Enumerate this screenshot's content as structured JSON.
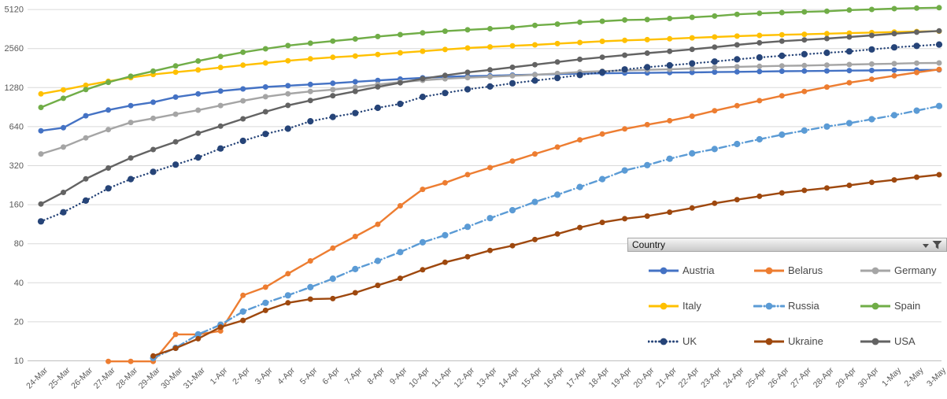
{
  "filter": {
    "label": "Country"
  },
  "chart_data": {
    "type": "line",
    "title": "",
    "xlabel": "",
    "ylabel": "",
    "y_scale": "log2",
    "ylim": [
      10,
      5120
    ],
    "grid": true,
    "legend_position": "bottom-right-overlay",
    "y_ticks": [
      5120,
      2560,
      1280,
      640,
      320,
      160,
      80,
      40,
      20,
      10
    ],
    "axis_text_color": "#595959",
    "grid_color": "#d9d9d9",
    "axis_line_color": "#bfbfbf",
    "x": [
      "24-Mar",
      "25-Mar",
      "26-Mar",
      "27-Mar",
      "28-Mar",
      "29-Mar",
      "30-Mar",
      "31-Mar",
      "1-Apr",
      "2-Apr",
      "3-Apr",
      "4-Apr",
      "5-Apr",
      "6-Apr",
      "7-Apr",
      "8-Apr",
      "9-Apr",
      "10-Apr",
      "11-Apr",
      "12-Apr",
      "13-Apr",
      "14-Apr",
      "15-Apr",
      "16-Apr",
      "17-Apr",
      "18-Apr",
      "19-Apr",
      "20-Apr",
      "21-Apr",
      "22-Apr",
      "23-Apr",
      "24-Apr",
      "25-Apr",
      "26-Apr",
      "27-Apr",
      "28-Apr",
      "29-Apr",
      "30-Apr",
      "1-May",
      "2-May",
      "3-May"
    ],
    "series": [
      {
        "name": "Austria",
        "color": "#4472C4",
        "style": "solid",
        "values": [
          594,
          628,
          776,
          860,
          929,
          987,
          1081,
          1144,
          1203,
          1250,
          1295,
          1324,
          1354,
          1382,
          1420,
          1454,
          1488,
          1523,
          1551,
          1567,
          1578,
          1598,
          1611,
          1626,
          1640,
          1648,
          1657,
          1662,
          1671,
          1677,
          1686,
          1693,
          1702,
          1711,
          1716,
          1721,
          1731,
          1736,
          1745,
          1748,
          1752
        ]
      },
      {
        "name": "Belarus",
        "color": "#ED7D31",
        "style": "solid",
        "values": [
          null,
          null,
          null,
          9.9,
          9.9,
          9.9,
          16,
          16,
          17,
          32,
          37,
          47,
          59,
          74,
          91,
          113,
          157,
          210,
          236,
          273,
          309,
          347,
          394,
          445,
          506,
          561,
          615,
          663,
          711,
          771,
          849,
          928,
          1015,
          1107,
          1195,
          1292,
          1395,
          1484,
          1579,
          1675,
          1768
        ]
      },
      {
        "name": "Germany",
        "color": "#A5A5A5",
        "style": "solid",
        "values": [
          394,
          445,
          524,
          607,
          689,
          741,
          798,
          857,
          931,
          1012,
          1088,
          1147,
          1195,
          1234,
          1285,
          1352,
          1411,
          1458,
          1497,
          1526,
          1552,
          1578,
          1608,
          1643,
          1687,
          1715,
          1739,
          1755,
          1770,
          1798,
          1827,
          1850,
          1868,
          1883,
          1894,
          1908,
          1928,
          1945,
          1958,
          1977,
          1983
        ]
      },
      {
        "name": "Italy",
        "color": "#FFC000",
        "style": "solid",
        "values": [
          1144,
          1230,
          1333,
          1431,
          1529,
          1616,
          1683,
          1750,
          1829,
          1906,
          1982,
          2061,
          2133,
          2192,
          2243,
          2306,
          2375,
          2441,
          2519,
          2586,
          2638,
          2687,
          2732,
          2794,
          2852,
          2910,
          2960,
          2997,
          3043,
          3098,
          3142,
          3192,
          3231,
          3269,
          3298,
          3333,
          3367,
          3398,
          3431,
          3462,
          3485
        ]
      },
      {
        "name": "Russia",
        "color": "#5B9BD5",
        "style": "dashdot",
        "values": [
          null,
          null,
          null,
          null,
          null,
          10.5,
          12.6,
          16,
          19,
          24,
          28,
          32,
          37,
          43,
          51,
          59,
          69,
          82,
          93,
          108,
          126,
          145,
          168,
          191,
          219,
          252,
          294,
          323,
          362,
          398,
          430,
          470,
          511,
          555,
          597,
          641,
          681,
          730,
          784,
          850,
          923
        ]
      },
      {
        "name": "Spain",
        "color": "#70AD47",
        "style": "solid",
        "values": [
          900,
          1059,
          1236,
          1406,
          1566,
          1714,
          1881,
          2052,
          2227,
          2397,
          2550,
          2699,
          2816,
          2923,
          3036,
          3170,
          3277,
          3385,
          3487,
          3568,
          3639,
          3723,
          3864,
          3956,
          4082,
          4158,
          4250,
          4282,
          4367,
          4457,
          4557,
          4701,
          4786,
          4847,
          4907,
          4965,
          5067,
          5126,
          5197,
          5253,
          5286
        ]
      },
      {
        "name": "UK",
        "color": "#264478",
        "style": "dotted",
        "values": [
          119,
          140,
          172,
          214,
          252,
          287,
          326,
          370,
          434,
          497,
          562,
          617,
          704,
          760,
          814,
          894,
          958,
          1086,
          1163,
          1241,
          1305,
          1382,
          1450,
          1518,
          1601,
          1682,
          1768,
          1837,
          1900,
          1966,
          2033,
          2113,
          2185,
          2251,
          2314,
          2373,
          2433,
          2522,
          2613,
          2684,
          2748
        ]
      },
      {
        "name": "Ukraine",
        "color": "#9E480E",
        "style": "solid",
        "values": [
          null,
          null,
          null,
          null,
          null,
          10.9,
          12.5,
          14.8,
          18.2,
          20.5,
          24.5,
          28,
          29.9,
          30.2,
          33.5,
          38.2,
          43.3,
          50.4,
          57.5,
          63.5,
          71,
          77.2,
          86.1,
          95.2,
          106.7,
          116.8,
          124.7,
          130.7,
          140.2,
          150.8,
          164.1,
          175,
          185.9,
          197.2,
          206.2,
          215.3,
          225.8,
          238.1,
          248.5,
          261.1,
          272.6
        ]
      },
      {
        "name": "USA",
        "color": "#636363",
        "style": "solid",
        "values": [
          162,
          199,
          253,
          307,
          367,
          426,
          489,
          569,
          645,
          735,
          833,
          933,
          1018,
          1108,
          1197,
          1296,
          1394,
          1500,
          1590,
          1678,
          1754,
          1836,
          1923,
          2017,
          2114,
          2195,
          2276,
          2360,
          2438,
          2524,
          2626,
          2735,
          2834,
          2918,
          2986,
          3059,
          3142,
          3231,
          3334,
          3423,
          3499
        ]
      }
    ]
  }
}
